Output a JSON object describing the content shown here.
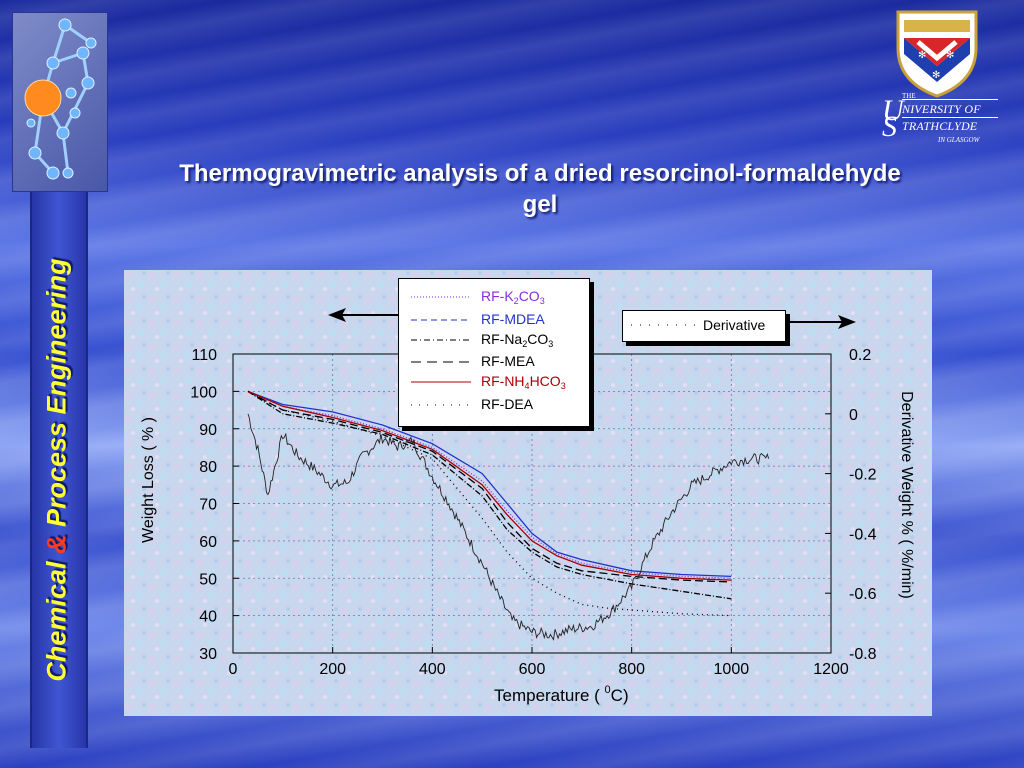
{
  "title": "Thermogravimetric analysis of a dried resorcinol-formaldehyde  gel",
  "side_label": {
    "part1": "Chemical ",
    "amp": "&",
    "part2": " Process Engineering"
  },
  "university": {
    "the": "THE",
    "line1_initial": "U",
    "line1": "NIVERSITY OF",
    "line2_initial": "S",
    "line2": "TRATHCLYDE",
    "line3": "IN GLASGOW"
  },
  "legend": {
    "items": [
      {
        "label": "RF-K",
        "sub1": "2",
        "mid": "CO",
        "sub2": "3",
        "color": "#8a2be2",
        "style": "dotted"
      },
      {
        "label": "RF-MDEA",
        "sub1": "",
        "mid": "",
        "sub2": "",
        "color": "#2233cc",
        "style": "dashed"
      },
      {
        "label": "RF-Na",
        "sub1": "2",
        "mid": "CO",
        "sub2": "3",
        "color": "#000000",
        "style": "dashdot"
      },
      {
        "label": "RF-MEA",
        "sub1": "",
        "mid": "",
        "sub2": "",
        "color": "#000000",
        "style": "longdash"
      },
      {
        "label": "RF-NH",
        "sub1": "4",
        "mid": "HCO",
        "sub2": "3",
        "color": "#aa0000",
        "style": "solid"
      },
      {
        "label": "RF-DEA",
        "sub1": "",
        "mid": "",
        "sub2": "",
        "color": "#000000",
        "style": "sparse-dots"
      }
    ],
    "derivative_label": "Derivative"
  },
  "colors": {
    "background": "#2a3fc0",
    "chart_bg": "#c9d7ee",
    "title": "#ffffff",
    "side_text": "#ffff33",
    "side_amp": "#ff3b1f"
  },
  "chart_data": {
    "type": "line",
    "xlabel": "Temperature ( ",
    "xlabel_sup": "0",
    "xlabel_end": "C)",
    "ylabel": "Weight Loss ( % )",
    "y2label": "Derivative Weight % ( %/min)",
    "xlim": [
      0,
      1200
    ],
    "ylim": [
      30,
      110
    ],
    "y2lim": [
      -0.8,
      0.2
    ],
    "xticks": [
      "0",
      "200",
      "400",
      "600",
      "800",
      "1000",
      "1200"
    ],
    "yticks": [
      "30",
      "40",
      "50",
      "60",
      "70",
      "80",
      "90",
      "100",
      "110"
    ],
    "y2ticks": [
      "-0.8",
      "-0.6",
      "-0.4",
      "-0.2",
      "0",
      "0.2"
    ],
    "grid": true,
    "series": [
      {
        "name": "RF-K2CO3",
        "color": "#8a2be2",
        "dash": "1,2",
        "x": [
          30,
          100,
          200,
          300,
          400,
          500,
          550,
          600,
          650,
          700,
          800,
          900,
          1000
        ],
        "y": [
          100,
          96,
          93.5,
          90,
          85,
          76,
          68,
          61,
          56.5,
          54,
          51.5,
          50.5,
          50
        ]
      },
      {
        "name": "RF-MDEA",
        "color": "#2233cc",
        "dash": "0",
        "x": [
          30,
          100,
          200,
          300,
          400,
          500,
          550,
          600,
          650,
          700,
          800,
          900,
          1000
        ],
        "y": [
          100,
          96.5,
          94.5,
          91,
          86,
          78,
          70,
          62,
          57,
          55,
          52,
          51,
          50.5
        ]
      },
      {
        "name": "RF-Na2CO3",
        "color": "#000000",
        "dash": "6,2,1,2",
        "x": [
          30,
          100,
          200,
          300,
          400,
          500,
          550,
          600,
          650,
          700,
          800,
          900,
          1000
        ],
        "y": [
          100,
          94,
          91.5,
          88.5,
          83,
          72,
          63,
          57,
          53,
          51,
          48.5,
          46.5,
          44.5
        ]
      },
      {
        "name": "RF-MEA",
        "color": "#000000",
        "dash": "8,4",
        "x": [
          30,
          100,
          200,
          300,
          400,
          500,
          550,
          600,
          650,
          700,
          800,
          900,
          1000
        ],
        "y": [
          100,
          95,
          92.5,
          89,
          84,
          74,
          65,
          58,
          54,
          52,
          50.5,
          49.5,
          49
        ]
      },
      {
        "name": "RF-NH4HCO3",
        "color": "#aa0000",
        "dash": "0",
        "x": [
          30,
          100,
          200,
          300,
          400,
          500,
          550,
          600,
          650,
          700,
          800,
          900,
          1000
        ],
        "y": [
          100,
          96,
          93,
          89.5,
          84.5,
          75,
          67,
          60,
          56,
          53.5,
          51,
          50,
          49.5
        ]
      },
      {
        "name": "RF-DEA",
        "color": "#000000",
        "dash": "1,4",
        "x": [
          30,
          100,
          200,
          300,
          400,
          500,
          550,
          600,
          650,
          700,
          750,
          800,
          900,
          1000
        ],
        "y": [
          100,
          95,
          92,
          88,
          82,
          66,
          57,
          50,
          46,
          43,
          42,
          41.5,
          40.5,
          40
        ]
      },
      {
        "name": "Derivative",
        "color": "#222222",
        "dash": "0",
        "axis": "y2",
        "x": [
          30,
          50,
          70,
          100,
          130,
          160,
          200,
          230,
          260,
          300,
          330,
          360,
          400,
          430,
          460,
          500,
          530,
          560,
          600,
          640,
          680,
          720,
          760,
          800,
          840,
          880,
          920,
          960,
          1000,
          1040,
          1075
        ],
        "y": [
          0.0,
          -0.12,
          -0.27,
          -0.07,
          -0.14,
          -0.18,
          -0.24,
          -0.23,
          -0.14,
          -0.08,
          -0.11,
          -0.09,
          -0.21,
          -0.29,
          -0.38,
          -0.5,
          -0.6,
          -0.69,
          -0.73,
          -0.74,
          -0.72,
          -0.71,
          -0.66,
          -0.58,
          -0.44,
          -0.33,
          -0.24,
          -0.2,
          -0.16,
          -0.15,
          -0.15
        ]
      }
    ]
  }
}
